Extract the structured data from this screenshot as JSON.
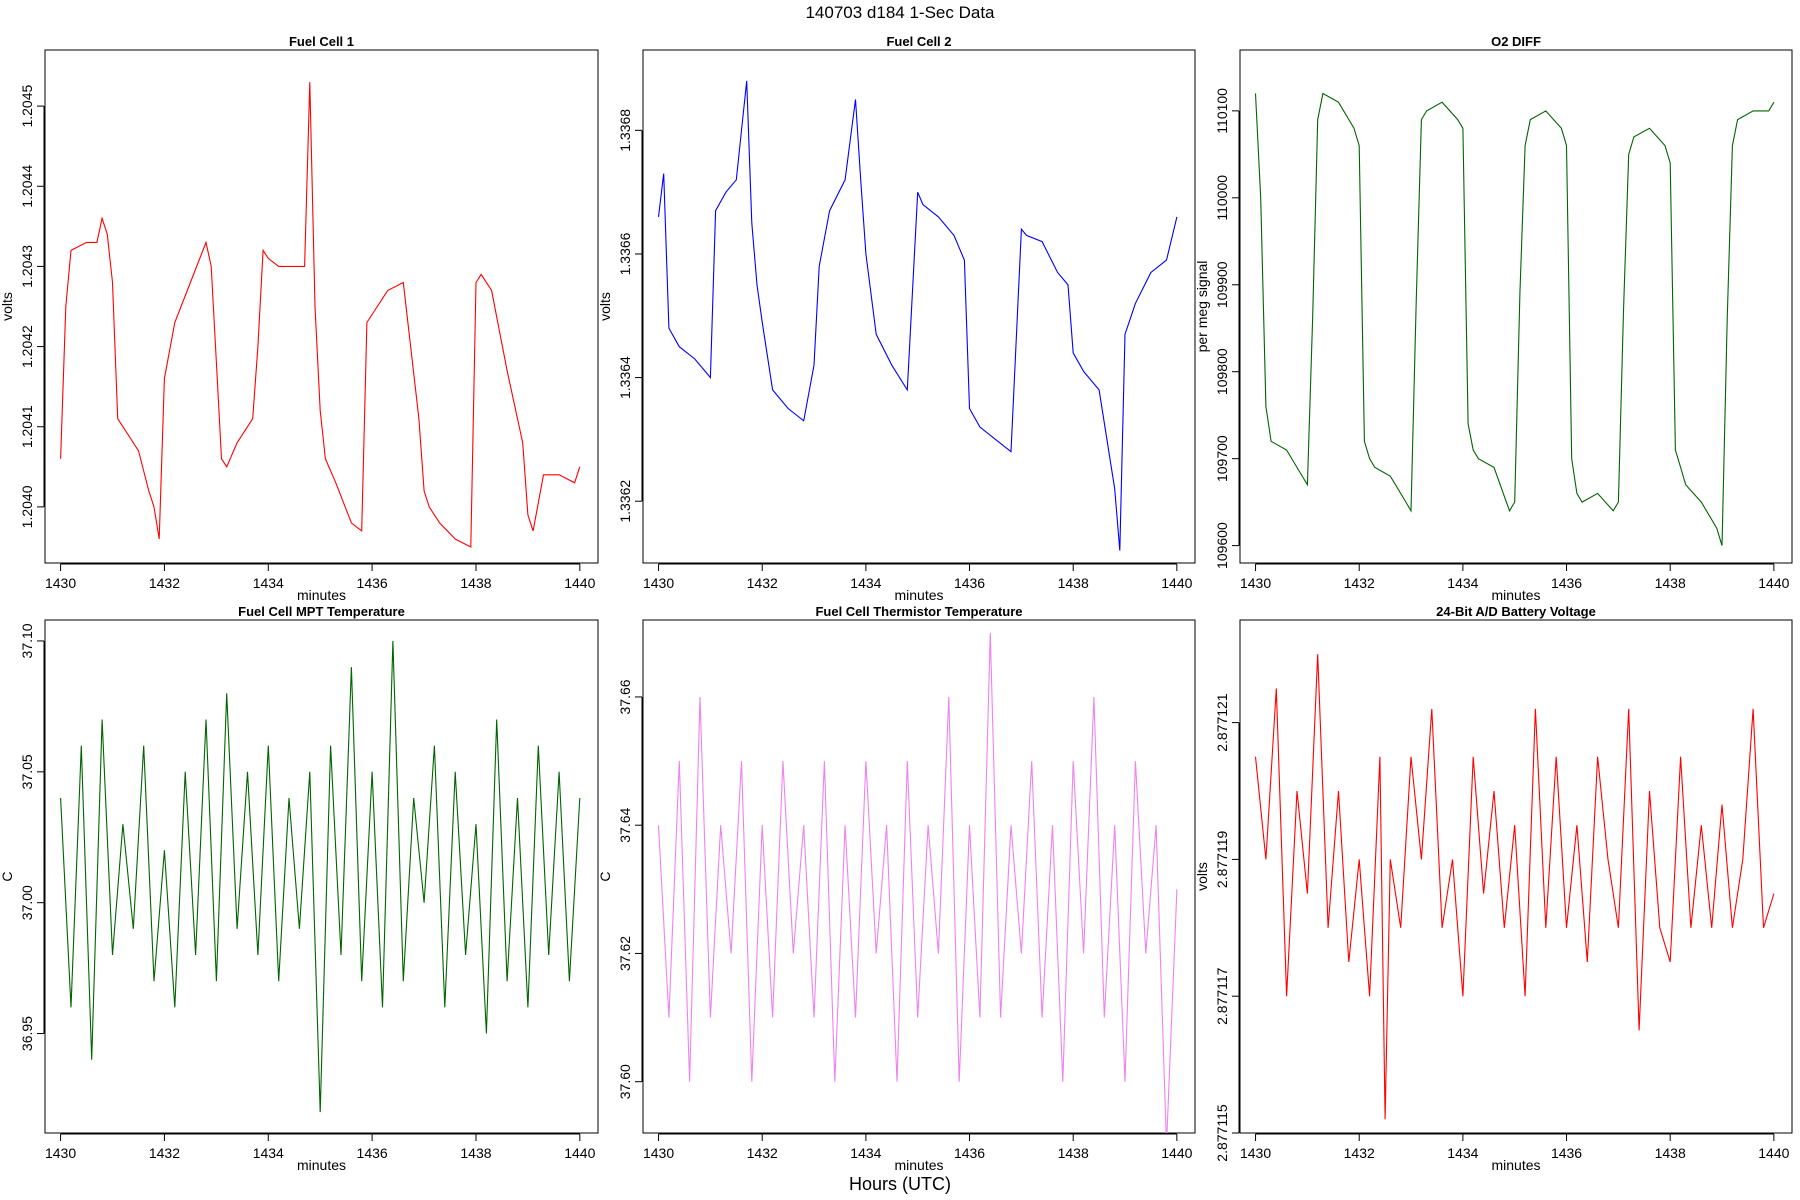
{
  "page_title": "140703   d184   1-Sec Data",
  "footer_label": "Hours (UTC)",
  "chart_data": [
    {
      "type": "line",
      "title": "Fuel Cell 1",
      "xlabel": "minutes",
      "ylabel": "volts",
      "color": "#ff0000",
      "xlim": [
        1429.7,
        1440.35
      ],
      "ylim": [
        1.20393,
        1.20457
      ],
      "xticks": [
        1430,
        1432,
        1434,
        1436,
        1438,
        1440
      ],
      "xtick_labels": [
        "1430",
        "1432",
        "1434",
        "1436",
        "1438",
        "1440"
      ],
      "yticks": [
        1.204,
        1.2041,
        1.2042,
        1.2043,
        1.2044,
        1.2045
      ],
      "ytick_labels": [
        "1.2040",
        "1.2041",
        "1.2042",
        "1.2043",
        "1.2044",
        "1.2045"
      ],
      "series": [
        {
          "x": [
            1430.0,
            1430.1,
            1430.2,
            1430.5,
            1430.7,
            1430.8,
            1430.9,
            1431.0,
            1431.1,
            1431.2,
            1431.5,
            1431.7,
            1431.8,
            1431.9,
            1432.0,
            1432.2,
            1432.5,
            1432.8,
            1432.9,
            1433.0,
            1433.1,
            1433.2,
            1433.4,
            1433.7,
            1433.8,
            1433.9,
            1434.0,
            1434.2,
            1434.5,
            1434.7,
            1434.8,
            1434.9,
            1435.0,
            1435.1,
            1435.3,
            1435.6,
            1435.8,
            1435.9,
            1436.0,
            1436.1,
            1436.3,
            1436.6,
            1436.9,
            1437.0,
            1437.1,
            1437.3,
            1437.6,
            1437.9,
            1438.0,
            1438.1,
            1438.3,
            1438.6,
            1438.9,
            1439.0,
            1439.1,
            1439.3,
            1439.6,
            1439.9,
            1440.0
          ],
          "y": [
            1.20406,
            1.20425,
            1.20432,
            1.20433,
            1.20433,
            1.20436,
            1.20434,
            1.20428,
            1.20411,
            1.2041,
            1.20407,
            1.20402,
            1.204,
            1.20396,
            1.20416,
            1.20423,
            1.20428,
            1.20433,
            1.2043,
            1.20418,
            1.20406,
            1.20405,
            1.20408,
            1.20411,
            1.2042,
            1.20432,
            1.20431,
            1.2043,
            1.2043,
            1.2043,
            1.20453,
            1.20425,
            1.20412,
            1.20406,
            1.20403,
            1.20398,
            1.20397,
            1.20423,
            1.20424,
            1.20425,
            1.20427,
            1.20428,
            1.20411,
            1.20402,
            1.204,
            1.20398,
            1.20396,
            1.20395,
            1.20428,
            1.20429,
            1.20427,
            1.20417,
            1.20408,
            1.20399,
            1.20397,
            1.20404,
            1.20404,
            1.20403,
            1.20405
          ]
        }
      ]
    },
    {
      "type": "line",
      "title": "Fuel Cell 2",
      "xlabel": "minutes",
      "ylabel": "volts",
      "color": "#0000ff",
      "xlim": [
        1429.7,
        1440.35
      ],
      "ylim": [
        1.3361,
        1.33693
      ],
      "xticks": [
        1430,
        1432,
        1434,
        1436,
        1438,
        1440
      ],
      "xtick_labels": [
        "1430",
        "1432",
        "1434",
        "1436",
        "1438",
        "1440"
      ],
      "yticks": [
        1.3362,
        1.3364,
        1.3366,
        1.3368
      ],
      "ytick_labels": [
        "1.3362",
        "1.3364",
        "1.3366",
        "1.3368"
      ],
      "series": [
        {
          "x": [
            1430.0,
            1430.1,
            1430.2,
            1430.4,
            1430.7,
            1430.9,
            1431.0,
            1431.1,
            1431.3,
            1431.5,
            1431.7,
            1431.8,
            1431.9,
            1432.0,
            1432.2,
            1432.5,
            1432.8,
            1433.0,
            1433.1,
            1433.3,
            1433.6,
            1433.8,
            1433.9,
            1434.0,
            1434.2,
            1434.5,
            1434.8,
            1435.0,
            1435.1,
            1435.4,
            1435.7,
            1435.9,
            1436.0,
            1436.2,
            1436.5,
            1436.8,
            1437.0,
            1437.1,
            1437.4,
            1437.7,
            1437.9,
            1438.0,
            1438.2,
            1438.5,
            1438.8,
            1438.9,
            1439.0,
            1439.2,
            1439.5,
            1439.8,
            1440.0
          ],
          "y": [
            1.33666,
            1.33673,
            1.33648,
            1.33645,
            1.33643,
            1.33641,
            1.3364,
            1.33667,
            1.3367,
            1.33672,
            1.33688,
            1.33665,
            1.33655,
            1.33649,
            1.33638,
            1.33635,
            1.33633,
            1.33642,
            1.33658,
            1.33667,
            1.33672,
            1.33685,
            1.33672,
            1.3366,
            1.33647,
            1.33642,
            1.33638,
            1.3367,
            1.33668,
            1.33666,
            1.33663,
            1.33659,
            1.33635,
            1.33632,
            1.3363,
            1.33628,
            1.33664,
            1.33663,
            1.33662,
            1.33657,
            1.33655,
            1.33644,
            1.33641,
            1.33638,
            1.33622,
            1.33612,
            1.33647,
            1.33652,
            1.33657,
            1.33659,
            1.33666
          ]
        }
      ]
    },
    {
      "type": "line",
      "title": "O2 DIFF",
      "xlabel": "minutes",
      "ylabel": "per meg signal",
      "color": "#006400",
      "xlim": [
        1429.7,
        1440.35
      ],
      "ylim": [
        109580,
        110170
      ],
      "xticks": [
        1430,
        1432,
        1434,
        1436,
        1438,
        1440
      ],
      "xtick_labels": [
        "1430",
        "1432",
        "1434",
        "1436",
        "1438",
        "1440"
      ],
      "yticks": [
        109600,
        109700,
        109800,
        109900,
        110000,
        110100
      ],
      "ytick_labels": [
        "109600",
        "109700",
        "109800",
        "109900",
        "110000",
        "110100"
      ],
      "series": [
        {
          "x": [
            1430.0,
            1430.1,
            1430.2,
            1430.3,
            1430.6,
            1430.9,
            1431.0,
            1431.1,
            1431.2,
            1431.3,
            1431.6,
            1431.9,
            1432.0,
            1432.1,
            1432.2,
            1432.3,
            1432.6,
            1432.9,
            1433.0,
            1433.1,
            1433.2,
            1433.3,
            1433.6,
            1433.9,
            1434.0,
            1434.1,
            1434.2,
            1434.3,
            1434.6,
            1434.9,
            1435.0,
            1435.1,
            1435.2,
            1435.3,
            1435.6,
            1435.9,
            1436.0,
            1436.1,
            1436.2,
            1436.3,
            1436.6,
            1436.9,
            1437.0,
            1437.1,
            1437.2,
            1437.3,
            1437.6,
            1437.9,
            1438.0,
            1438.1,
            1438.2,
            1438.3,
            1438.6,
            1438.9,
            1439.0,
            1439.1,
            1439.2,
            1439.3,
            1439.6,
            1439.9,
            1440.0
          ],
          "y": [
            110120,
            110000,
            109760,
            109720,
            109710,
            109680,
            109670,
            109860,
            110090,
            110120,
            110110,
            110080,
            110060,
            109720,
            109700,
            109690,
            109680,
            109650,
            109640,
            109880,
            110090,
            110100,
            110110,
            110090,
            110080,
            109740,
            109710,
            109700,
            109690,
            109640,
            109650,
            109890,
            110060,
            110090,
            110100,
            110080,
            110060,
            109700,
            109660,
            109650,
            109660,
            109640,
            109650,
            109870,
            110050,
            110070,
            110080,
            110060,
            110040,
            109710,
            109690,
            109670,
            109650,
            109620,
            109600,
            109860,
            110060,
            110090,
            110100,
            110100,
            110110
          ]
        }
      ]
    },
    {
      "type": "line",
      "title": "Fuel Cell MPT Temperature",
      "xlabel": "minutes",
      "ylabel": "C",
      "color": "#006400",
      "xlim": [
        1429.7,
        1440.35
      ],
      "ylim": [
        36.912,
        37.108
      ],
      "xticks": [
        1430,
        1432,
        1434,
        1436,
        1438,
        1440
      ],
      "xtick_labels": [
        "1430",
        "1432",
        "1434",
        "1436",
        "1438",
        "1440"
      ],
      "yticks": [
        36.95,
        37.0,
        37.05,
        37.1
      ],
      "ytick_labels": [
        "36.95",
        "37.00",
        "37.05",
        "37.10"
      ],
      "series": [
        {
          "x": [
            1430.0,
            1430.2,
            1430.4,
            1430.6,
            1430.8,
            1431.0,
            1431.2,
            1431.4,
            1431.6,
            1431.8,
            1432.0,
            1432.2,
            1432.4,
            1432.6,
            1432.8,
            1433.0,
            1433.2,
            1433.4,
            1433.6,
            1433.8,
            1434.0,
            1434.2,
            1434.4,
            1434.6,
            1434.8,
            1435.0,
            1435.2,
            1435.4,
            1435.6,
            1435.8,
            1436.0,
            1436.2,
            1436.4,
            1436.6,
            1436.8,
            1437.0,
            1437.2,
            1437.4,
            1437.6,
            1437.8,
            1438.0,
            1438.2,
            1438.4,
            1438.6,
            1438.8,
            1439.0,
            1439.2,
            1439.4,
            1439.6,
            1439.8,
            1440.0
          ],
          "y": [
            37.04,
            36.96,
            37.06,
            36.94,
            37.07,
            36.98,
            37.03,
            36.99,
            37.06,
            36.97,
            37.02,
            36.96,
            37.05,
            36.98,
            37.07,
            36.97,
            37.08,
            36.99,
            37.05,
            36.98,
            37.06,
            36.97,
            37.04,
            36.99,
            37.05,
            36.92,
            37.06,
            36.98,
            37.09,
            36.97,
            37.05,
            36.96,
            37.1,
            36.97,
            37.04,
            37.0,
            37.06,
            36.96,
            37.05,
            36.98,
            37.03,
            36.95,
            37.07,
            36.97,
            37.04,
            36.96,
            37.06,
            36.98,
            37.05,
            36.97,
            37.04
          ]
        }
      ]
    },
    {
      "type": "line",
      "title": "Fuel Cell Thermistor Temperature",
      "xlabel": "minutes",
      "ylabel": "C",
      "color": "#ee82ee",
      "xlim": [
        1429.7,
        1440.35
      ],
      "ylim": [
        37.592,
        37.672
      ],
      "xticks": [
        1430,
        1432,
        1434,
        1436,
        1438,
        1440
      ],
      "xtick_labels": [
        "1430",
        "1432",
        "1434",
        "1436",
        "1438",
        "1440"
      ],
      "yticks": [
        37.6,
        37.62,
        37.64,
        37.66
      ],
      "ytick_labels": [
        "37.60",
        "37.62",
        "37.64",
        "37.66"
      ],
      "series": [
        {
          "x": [
            1430.0,
            1430.2,
            1430.4,
            1430.6,
            1430.8,
            1431.0,
            1431.2,
            1431.4,
            1431.6,
            1431.8,
            1432.0,
            1432.2,
            1432.4,
            1432.6,
            1432.8,
            1433.0,
            1433.2,
            1433.4,
            1433.6,
            1433.8,
            1434.0,
            1434.2,
            1434.4,
            1434.6,
            1434.8,
            1435.0,
            1435.2,
            1435.4,
            1435.6,
            1435.8,
            1436.0,
            1436.2,
            1436.4,
            1436.6,
            1436.8,
            1437.0,
            1437.2,
            1437.4,
            1437.6,
            1437.8,
            1438.0,
            1438.2,
            1438.4,
            1438.6,
            1438.8,
            1439.0,
            1439.2,
            1439.4,
            1439.6,
            1439.8,
            1440.0
          ],
          "y": [
            37.64,
            37.61,
            37.65,
            37.6,
            37.66,
            37.61,
            37.64,
            37.62,
            37.65,
            37.6,
            37.64,
            37.61,
            37.65,
            37.62,
            37.64,
            37.61,
            37.65,
            37.6,
            37.64,
            37.61,
            37.65,
            37.62,
            37.64,
            37.6,
            37.65,
            37.61,
            37.64,
            37.62,
            37.66,
            37.6,
            37.64,
            37.61,
            37.67,
            37.61,
            37.64,
            37.62,
            37.65,
            37.61,
            37.64,
            37.6,
            37.65,
            37.62,
            37.66,
            37.61,
            37.64,
            37.6,
            37.65,
            37.62,
            37.64,
            37.59,
            37.63
          ]
        }
      ]
    },
    {
      "type": "line",
      "title": "24-Bit A/D Battery Voltage",
      "xlabel": "minutes",
      "ylabel": "volts",
      "color": "#ff0000",
      "xlim": [
        1429.7,
        1440.35
      ],
      "ylim": [
        2.877115,
        2.8771225
      ],
      "xticks": [
        1430,
        1432,
        1434,
        1436,
        1438,
        1440
      ],
      "xtick_labels": [
        "1430",
        "1432",
        "1434",
        "1436",
        "1438",
        "1440"
      ],
      "yticks": [
        2.877115,
        2.877117,
        2.877119,
        2.877121
      ],
      "ytick_labels": [
        "2.877115",
        "2.877117",
        "2.877119",
        "2.877121"
      ],
      "series": [
        {
          "x": [
            1430.0,
            1430.2,
            1430.4,
            1430.6,
            1430.8,
            1431.0,
            1431.2,
            1431.4,
            1431.6,
            1431.8,
            1432.0,
            1432.2,
            1432.4,
            1432.5,
            1432.6,
            1432.8,
            1433.0,
            1433.2,
            1433.4,
            1433.6,
            1433.8,
            1434.0,
            1434.2,
            1434.4,
            1434.6,
            1434.8,
            1435.0,
            1435.2,
            1435.4,
            1435.6,
            1435.8,
            1436.0,
            1436.2,
            1436.4,
            1436.6,
            1436.8,
            1437.0,
            1437.2,
            1437.4,
            1437.6,
            1437.8,
            1438.0,
            1438.2,
            1438.4,
            1438.6,
            1438.8,
            1439.0,
            1439.2,
            1439.4,
            1439.6,
            1439.8,
            1440.0
          ],
          "y": [
            2.8771205,
            2.877119,
            2.8771215,
            2.877117,
            2.87712,
            2.8771185,
            2.877122,
            2.877118,
            2.87712,
            2.8771175,
            2.877119,
            2.877117,
            2.8771205,
            2.8771152,
            2.877119,
            2.877118,
            2.8771205,
            2.877119,
            2.8771212,
            2.877118,
            2.877119,
            2.877117,
            2.8771205,
            2.8771185,
            2.87712,
            2.877118,
            2.8771195,
            2.877117,
            2.8771212,
            2.877118,
            2.8771205,
            2.877118,
            2.8771195,
            2.8771175,
            2.8771205,
            2.877119,
            2.877118,
            2.8771212,
            2.8771165,
            2.87712,
            2.877118,
            2.8771175,
            2.8771205,
            2.877118,
            2.8771195,
            2.877118,
            2.8771198,
            2.877118,
            2.877119,
            2.8771212,
            2.877118,
            2.8771185
          ]
        }
      ]
    }
  ]
}
